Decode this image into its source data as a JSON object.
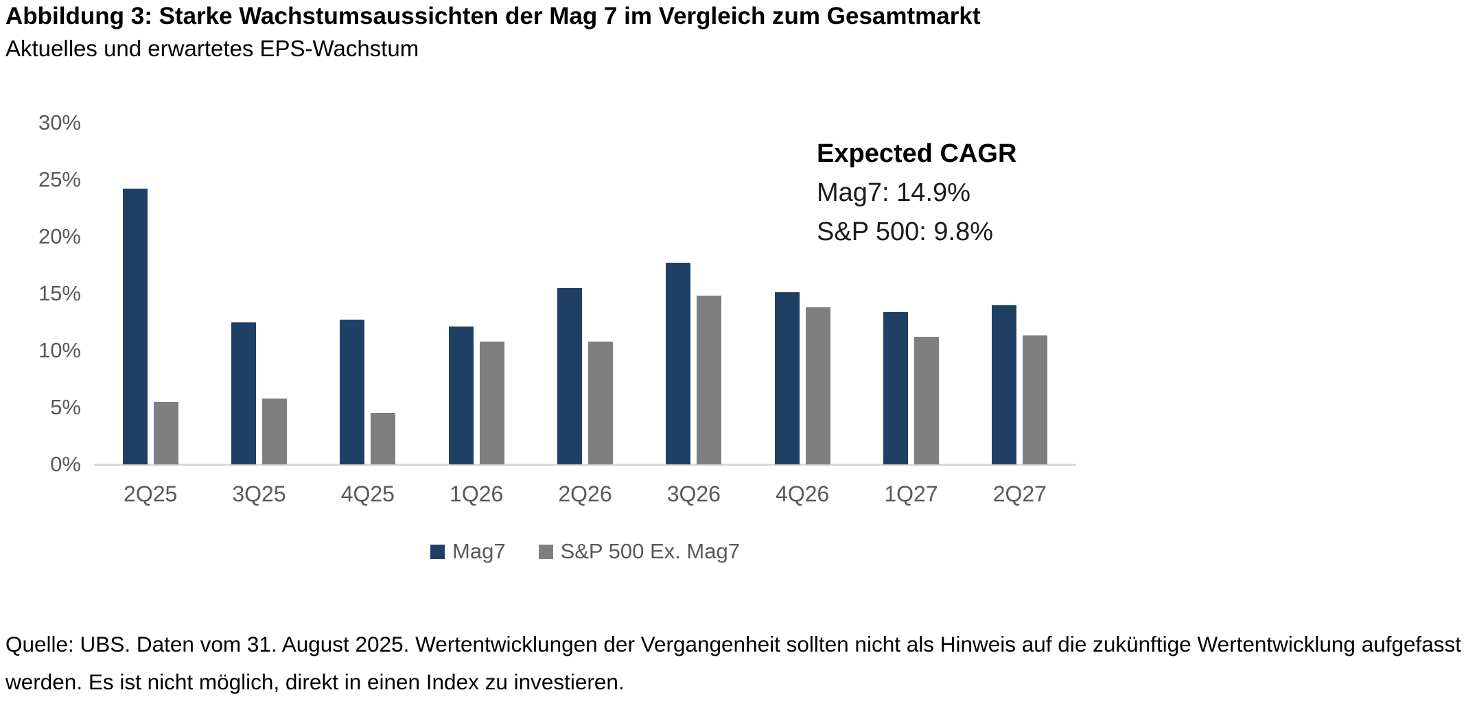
{
  "header": {
    "title": "Abbildung 3: Starke Wachstumsaussichten der Mag 7 im Vergleich zum Gesamtmarkt",
    "subtitle": "Aktuelles und erwartetes EPS-Wachstum"
  },
  "chart_data": {
    "type": "bar",
    "categories": [
      "2Q25",
      "3Q25",
      "4Q25",
      "1Q26",
      "2Q26",
      "3Q26",
      "4Q26",
      "1Q27",
      "2Q27"
    ],
    "series": [
      {
        "name": "Mag7",
        "color": "#1f4064",
        "values": [
          24.2,
          12.5,
          12.7,
          12.1,
          15.5,
          17.7,
          15.1,
          13.4,
          14.0
        ]
      },
      {
        "name": "S&P 500 Ex. Mag7",
        "color": "#7f7f7f",
        "values": [
          5.5,
          5.8,
          4.5,
          10.8,
          10.8,
          14.8,
          13.8,
          11.2,
          11.3
        ]
      }
    ],
    "title": "",
    "xlabel": "",
    "ylabel": "",
    "ylim": [
      0,
      30
    ],
    "ytick_step": 5,
    "yticks": [
      "0%",
      "5%",
      "10%",
      "15%",
      "20%",
      "25%",
      "30%"
    ],
    "grid": false,
    "legend_position": "bottom",
    "axis_line_color": "#d9d9d9",
    "tick_text_color": "#595959",
    "annotation": {
      "title": "Expected CAGR",
      "lines": [
        "Mag7: 14.9%",
        "S&P 500: 9.8%"
      ]
    }
  },
  "footer": {
    "source": "Quelle: UBS. Daten vom 31. August 2025. Wertentwicklungen der Vergangenheit sollten nicht als Hinweis auf die zukünftige Wertentwicklung aufgefasst werden. Es ist nicht möglich, direkt in einen Index zu investieren."
  }
}
